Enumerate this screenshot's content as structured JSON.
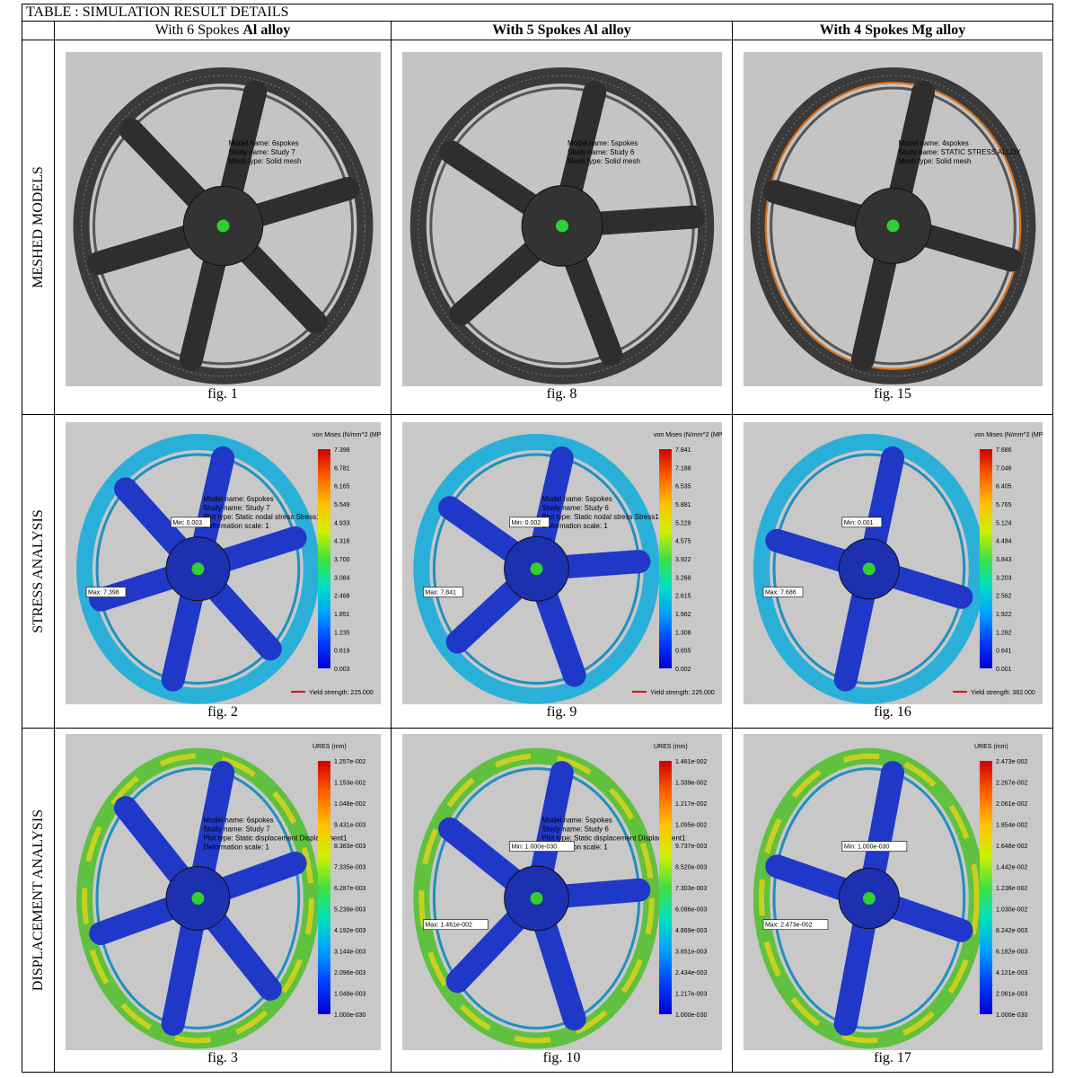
{
  "table": {
    "title": "TABLE : SIMULATION RESULT DETAILS",
    "headers": [
      [
        {
          "text": "With 6 Spokes ",
          "bold": false
        },
        {
          "text": "Al alloy",
          "bold": true
        }
      ],
      [
        {
          "text": "With 5 Spokes Al alloy",
          "bold": true
        }
      ],
      [
        {
          "text": "With 4 Spokes Mg alloy",
          "bold": true
        }
      ]
    ],
    "rows": [
      {
        "label": "MESHED MODELS",
        "kind": "mesh",
        "cells": [
          {
            "caption": "fig. 1",
            "info": [
              "Model name: 6spokes",
              "Study name: Study 7",
              "Mesh type: Solid mesh"
            ]
          },
          {
            "caption": "fig. 8",
            "info": [
              "Model name: 5spokes",
              "Study name: Study 6",
              "Mesh type: Solid mesh"
            ]
          },
          {
            "caption": "fig. 15",
            "info": [
              "Model name: 4spokes",
              "Study name: STATIC STRESS ALLOY",
              "Mesh type: Solid mesh"
            ]
          }
        ]
      },
      {
        "label": "STRESS ANALYSIS",
        "kind": "stress",
        "cells": [
          {
            "caption": "fig. 2",
            "info": [
              "Model name: 6spokes",
              "Study name: Study 7",
              "Plot type: Static nodal stress Stress1",
              "Deformation scale: 1"
            ],
            "legend_title": "von Mises (N/mm^2 (MPa))",
            "legend": [
              "7.398",
              "6.781",
              "6.165",
              "5.549",
              "4.933",
              "4.316",
              "3.700",
              "3.084",
              "2.468",
              "1.851",
              "1.235",
              "0.619",
              "0.003"
            ],
            "max": "Max: 7.398",
            "min": "Min: 0.003",
            "yield": "Yield strength: 225.000"
          },
          {
            "caption": "fig. 9",
            "info": [
              "Model name: 5spokes",
              "Study name: Study 6",
              "Plot type: Static nodal stress Stress1",
              "Deformation scale: 1"
            ],
            "legend_title": "von Mises (N/mm^2 (MPa))",
            "legend": [
              "7.841",
              "7.188",
              "6.535",
              "5.881",
              "5.228",
              "4.575",
              "3.922",
              "3.268",
              "2.615",
              "1.962",
              "1.308",
              "0.655",
              "0.002"
            ],
            "max": "Max: 7.841",
            "min": "Min: 0.002",
            "yield": "Yield strength: 225.000"
          },
          {
            "caption": "fig. 16",
            "legend_title": "von Mises (N/mm^2 (MPa))",
            "legend": [
              "7.686",
              "7.046",
              "6.405",
              "5.765",
              "5.124",
              "4.484",
              "3.843",
              "3.203",
              "2.562",
              "1.922",
              "1.282",
              "0.641",
              "0.001"
            ],
            "max": "Max: 7.686",
            "min": "Min: 0.001",
            "yield": "Yield strength: 382.000"
          }
        ]
      },
      {
        "label": "DISPLACEMENT ANALYSIS",
        "kind": "disp",
        "cells": [
          {
            "caption": "fig. 3",
            "info": [
              "Model name: 6spokes",
              "Study name: Study 7",
              "Plot type: Static displacement Displacement1",
              "Deformation scale: 1"
            ],
            "legend_title": "URES (mm)",
            "legend": [
              "1.257e-002",
              "1.153e-002",
              "1.048e-002",
              "9.431e-003",
              "8.383e-003",
              "7.335e-003",
              "6.287e-003",
              "5.239e-003",
              "4.192e-003",
              "3.144e-003",
              "2.096e-003",
              "1.048e-003",
              "1.000e-030"
            ]
          },
          {
            "caption": "fig. 10",
            "info": [
              "Model name: 5spokes",
              "Study name: Study 6",
              "Plot type: Static displacement Displacement1",
              "Deformation scale: 1"
            ],
            "legend_title": "URES (mm)",
            "legend": [
              "1.461e-002",
              "1.339e-002",
              "1.217e-002",
              "1.095e-002",
              "9.737e-003",
              "8.520e-003",
              "7.303e-003",
              "6.086e-003",
              "4.869e-003",
              "3.651e-003",
              "2.434e-003",
              "1.217e-003",
              "1.000e-030"
            ],
            "max": "Max: 1.461e-002",
            "min": "Min: 1.000e-030"
          },
          {
            "caption": "fig. 17",
            "legend_title": "URES (mm)",
            "legend": [
              "2.473e-002",
              "2.267e-002",
              "2.061e-002",
              "1.854e-002",
              "1.648e-002",
              "1.442e-002",
              "1.236e-002",
              "1.030e-002",
              "8.242e-003",
              "6.182e-003",
              "4.121e-003",
              "2.061e-003",
              "1.000e-030"
            ],
            "max": "Max: 2.473e-002",
            "min": "Min: 1.000e-030"
          }
        ]
      }
    ]
  }
}
